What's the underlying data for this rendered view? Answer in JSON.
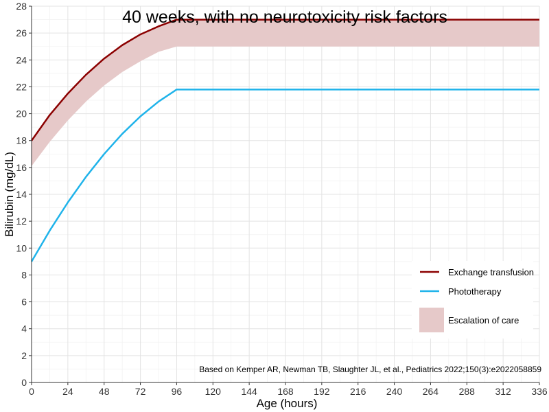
{
  "chart_data": {
    "type": "line",
    "title": "40 weeks, with no neurotoxicity risk factors",
    "xlabel": "Age (hours)",
    "ylabel": "Bilirubin (mg/dL)",
    "xlim": [
      0,
      336
    ],
    "ylim": [
      0,
      28
    ],
    "x_ticks": [
      0,
      24,
      48,
      72,
      96,
      120,
      144,
      168,
      192,
      216,
      240,
      264,
      288,
      312,
      336
    ],
    "y_ticks": [
      0,
      2,
      4,
      6,
      8,
      10,
      12,
      14,
      16,
      18,
      20,
      22,
      24,
      26,
      28
    ],
    "grid": true,
    "legend_position": "bottom-right",
    "caption": "Based on Kemper AR, Newman TB, Slaughter JL, et al., Pediatrics 2022;150(3):e2022058859",
    "series": [
      {
        "name": "Exchange transfusion",
        "color": "#8b0000",
        "x": [
          0,
          12,
          24,
          36,
          48,
          60,
          72,
          84,
          96,
          120,
          144,
          168,
          192,
          216,
          240,
          264,
          288,
          312,
          336
        ],
        "y": [
          18.0,
          19.9,
          21.5,
          22.9,
          24.1,
          25.1,
          25.9,
          26.5,
          27.0,
          27.0,
          27.0,
          27.0,
          27.0,
          27.0,
          27.0,
          27.0,
          27.0,
          27.0,
          27.0
        ]
      },
      {
        "name": "Phototherapy",
        "color": "#1fb3ea",
        "x": [
          0,
          12,
          24,
          36,
          48,
          60,
          72,
          84,
          96,
          120,
          144,
          168,
          192,
          216,
          240,
          264,
          288,
          312,
          336
        ],
        "y": [
          9.0,
          11.3,
          13.4,
          15.3,
          17.0,
          18.5,
          19.8,
          20.9,
          21.8,
          21.8,
          21.8,
          21.8,
          21.8,
          21.8,
          21.8,
          21.8,
          21.8,
          21.8,
          21.8
        ]
      }
    ],
    "band": {
      "name": "Escalation of care",
      "color": "#e6c9c9",
      "x": [
        0,
        12,
        24,
        36,
        48,
        60,
        72,
        84,
        96,
        120,
        144,
        168,
        192,
        216,
        240,
        264,
        288,
        312,
        336
      ],
      "lower": [
        16.1,
        17.9,
        19.5,
        20.9,
        22.1,
        23.1,
        23.9,
        24.6,
        25.0,
        25.0,
        25.0,
        25.0,
        25.0,
        25.0,
        25.0,
        25.0,
        25.0,
        25.0,
        25.0
      ],
      "upper": [
        18.0,
        19.9,
        21.5,
        22.9,
        24.1,
        25.1,
        25.9,
        26.5,
        27.0,
        27.0,
        27.0,
        27.0,
        27.0,
        27.0,
        27.0,
        27.0,
        27.0,
        27.0,
        27.0
      ]
    }
  }
}
